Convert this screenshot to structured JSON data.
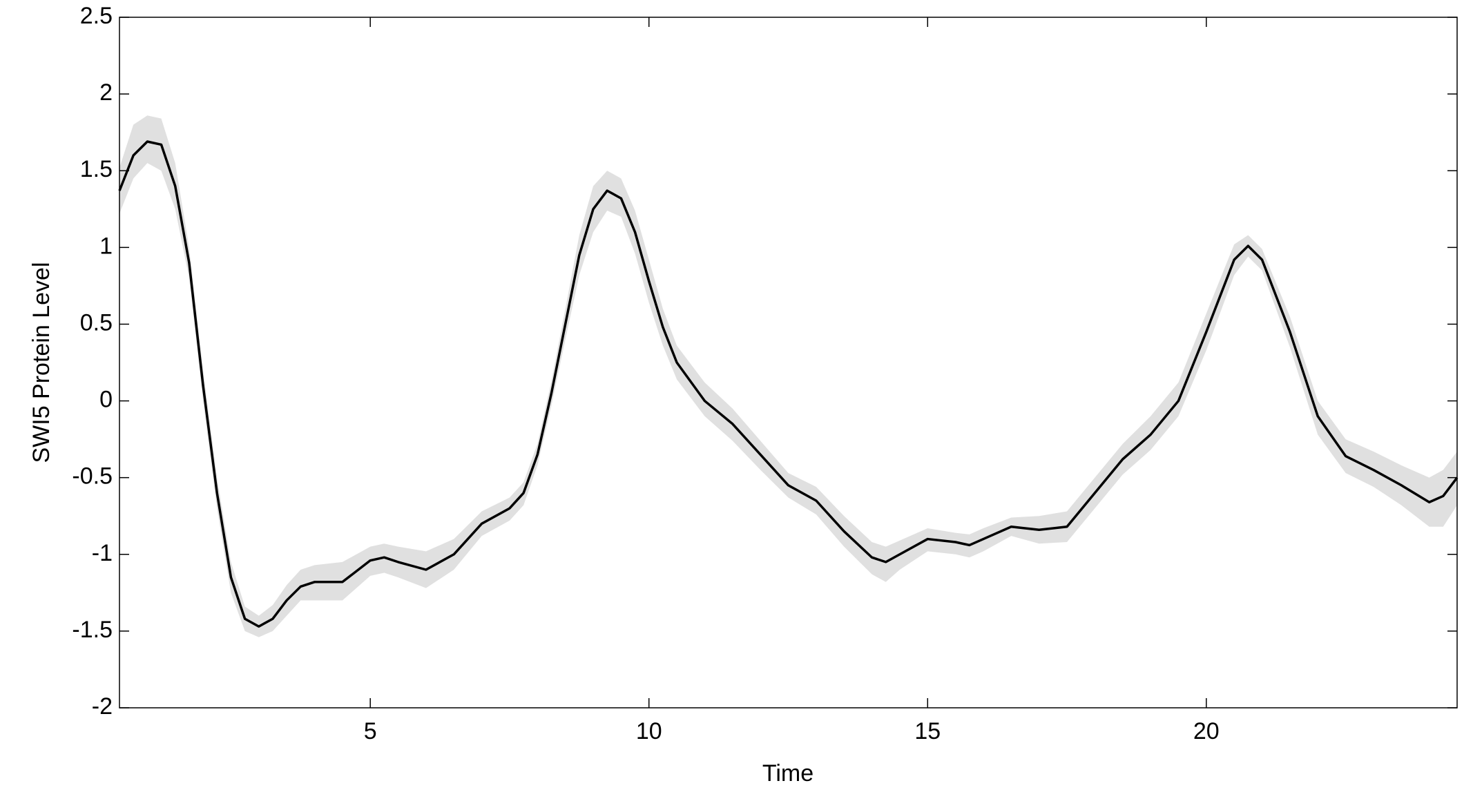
{
  "chart_data": {
    "type": "line",
    "xlabel": "Time",
    "ylabel": "SWI5 Protein Level",
    "x": [
      0.5,
      0.75,
      1.0,
      1.25,
      1.5,
      1.75,
      2.0,
      2.25,
      2.5,
      2.75,
      3.0,
      3.25,
      3.5,
      3.75,
      4.0,
      4.5,
      5.0,
      5.25,
      5.5,
      6.0,
      6.5,
      7.0,
      7.5,
      7.75,
      8.0,
      8.25,
      8.5,
      8.75,
      9.0,
      9.25,
      9.5,
      9.75,
      10.0,
      10.25,
      10.5,
      11.0,
      11.5,
      12.0,
      12.5,
      13.0,
      13.5,
      14.0,
      14.25,
      14.5,
      15.0,
      15.5,
      15.75,
      16.0,
      16.5,
      17.0,
      17.5,
      18.0,
      18.5,
      19.0,
      19.5,
      20.0,
      20.5,
      20.75,
      21.0,
      21.5,
      22.0,
      22.5,
      23.0,
      23.5,
      24.0,
      24.25,
      24.5
    ],
    "series": [
      {
        "color": "#000000",
        "values": [
          1.37,
          1.6,
          1.69,
          1.67,
          1.4,
          0.9,
          0.1,
          -0.6,
          -1.15,
          -1.42,
          -1.47,
          -1.42,
          -1.3,
          -1.21,
          -1.18,
          -1.18,
          -1.04,
          -1.02,
          -1.05,
          -1.1,
          -1.0,
          -0.8,
          -0.7,
          -0.6,
          -0.35,
          0.05,
          0.5,
          0.95,
          1.25,
          1.37,
          1.32,
          1.1,
          0.78,
          0.48,
          0.25,
          0.0,
          -0.15,
          -0.35,
          -0.55,
          -0.65,
          -0.85,
          -1.02,
          -1.05,
          -1.0,
          -0.9,
          -0.92,
          -0.94,
          -0.9,
          -0.82,
          -0.84,
          -0.82,
          -0.6,
          -0.38,
          -0.22,
          0.0,
          0.45,
          0.92,
          1.01,
          0.92,
          0.45,
          -0.1,
          -0.36,
          -0.45,
          -0.55,
          -0.66,
          -0.62,
          -0.5
        ]
      }
    ],
    "band": {
      "color": "#e0e0e0",
      "upper": [
        1.52,
        1.8,
        1.86,
        1.84,
        1.55,
        1.0,
        0.2,
        -0.5,
        -1.05,
        -1.34,
        -1.4,
        -1.33,
        -1.2,
        -1.1,
        -1.07,
        -1.05,
        -0.95,
        -0.93,
        -0.95,
        -0.98,
        -0.9,
        -0.72,
        -0.63,
        -0.53,
        -0.28,
        0.13,
        0.6,
        1.08,
        1.4,
        1.5,
        1.45,
        1.24,
        0.92,
        0.6,
        0.36,
        0.12,
        -0.05,
        -0.26,
        -0.47,
        -0.56,
        -0.75,
        -0.92,
        -0.95,
        -0.91,
        -0.83,
        -0.86,
        -0.87,
        -0.83,
        -0.76,
        -0.75,
        -0.72,
        -0.5,
        -0.28,
        -0.1,
        0.12,
        0.57,
        1.02,
        1.08,
        0.99,
        0.55,
        0.0,
        -0.25,
        -0.33,
        -0.42,
        -0.5,
        -0.45,
        -0.33
      ],
      "lower": [
        1.22,
        1.45,
        1.55,
        1.5,
        1.25,
        0.8,
        0.0,
        -0.7,
        -1.25,
        -1.5,
        -1.54,
        -1.5,
        -1.4,
        -1.3,
        -1.3,
        -1.3,
        -1.14,
        -1.12,
        -1.15,
        -1.22,
        -1.1,
        -0.88,
        -0.78,
        -0.68,
        -0.42,
        -0.03,
        0.4,
        0.82,
        1.1,
        1.24,
        1.2,
        0.96,
        0.64,
        0.36,
        0.14,
        -0.1,
        -0.26,
        -0.45,
        -0.63,
        -0.74,
        -0.95,
        -1.13,
        -1.18,
        -1.1,
        -0.98,
        -1.0,
        -1.02,
        -0.98,
        -0.88,
        -0.93,
        -0.92,
        -0.7,
        -0.48,
        -0.32,
        -0.1,
        0.33,
        0.82,
        0.94,
        0.85,
        0.35,
        -0.22,
        -0.47,
        -0.56,
        -0.68,
        -0.82,
        -0.82,
        -0.68
      ]
    },
    "xlim": [
      0.5,
      24.5
    ],
    "xticks": [
      5,
      10,
      15,
      20
    ],
    "ylim": [
      -2,
      2.5
    ],
    "yticks": [
      -2,
      -1.5,
      -1,
      -0.5,
      0,
      0.5,
      1,
      1.5,
      2,
      2.5
    ]
  }
}
